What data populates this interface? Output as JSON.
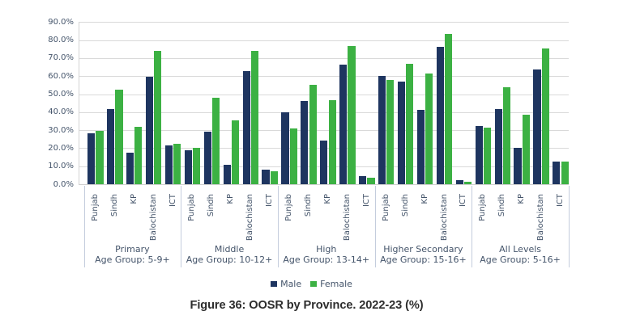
{
  "chart_data": {
    "type": "bar",
    "y_ticks": [
      "90.0%",
      "80.0%",
      "70.0%",
      "60.0%",
      "50.0%",
      "40.0%",
      "30.0%",
      "20.0%",
      "10.0%",
      "0.0%"
    ],
    "ylim": [
      0,
      90
    ],
    "grid": true,
    "provinces": [
      "Punjab",
      "Sindh",
      "KP",
      "Balochistan",
      "ICT"
    ],
    "groups": [
      {
        "level": "Primary",
        "age_group": "Age Group: 5-9+"
      },
      {
        "level": "Middle",
        "age_group": "Age Group: 10-12+"
      },
      {
        "level": "High",
        "age_group": "Age Group: 13-14+"
      },
      {
        "level": "Higher Secondary",
        "age_group": "Age Group: 15-16+"
      },
      {
        "level": "All Levels",
        "age_group": "Age Group: 5-16+"
      }
    ],
    "series": [
      {
        "name": "Male",
        "color": "#1e3560",
        "values": [
          28.2,
          41.7,
          17.4,
          59.5,
          21.6,
          18.7,
          29.2,
          10.7,
          62.6,
          8.2,
          39.7,
          46.1,
          24.4,
          66.5,
          4.3,
          60.0,
          57.0,
          41.3,
          76.2,
          2.2,
          32.5,
          41.7,
          20.0,
          63.8,
          12.5
        ]
      },
      {
        "name": "Female",
        "color": "#3cb143",
        "values": [
          29.4,
          52.6,
          31.7,
          73.9,
          22.2,
          20.4,
          48.1,
          35.3,
          73.9,
          7.3,
          30.8,
          55.0,
          46.7,
          76.9,
          3.4,
          58.0,
          66.7,
          61.3,
          83.3,
          1.5,
          31.2,
          53.9,
          38.7,
          75.5,
          12.5
        ]
      }
    ],
    "legend_position": "bottom"
  },
  "legend": {
    "items": [
      {
        "label": "Male",
        "color": "#1e3560"
      },
      {
        "label": "Female",
        "color": "#3cb143"
      }
    ]
  },
  "caption": "Figure 36: OOSR by Province. 2022-23 (%)"
}
